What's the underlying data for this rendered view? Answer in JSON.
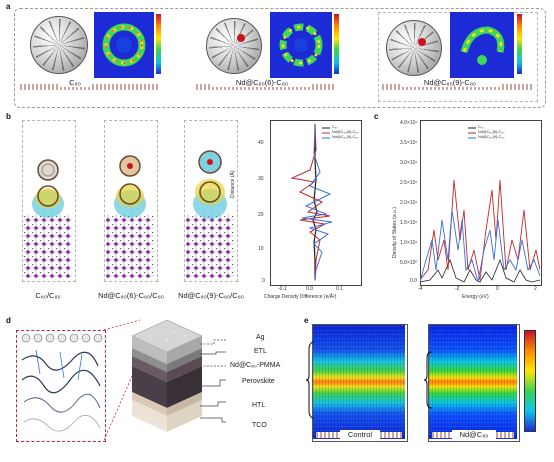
{
  "panels": {
    "a": "a",
    "b": "b",
    "c": "c",
    "d": "d",
    "e": "e"
  },
  "panel_a": {
    "labels": [
      "C₈₀",
      "Nd@C₈₀(6)-C₈₀",
      "Nd@C₈₀(9)-C₈₀"
    ]
  },
  "panel_b": {
    "structures": [
      "C₈₀/C₈₀",
      "Nd@C₈₀(6)-C₈₀/C₈₀",
      "Nd@C₈₀(9)-C₈₀/C₈₀"
    ],
    "plot": {
      "ylabel": "Distance (Å)",
      "xlabel": "Charge Density Difference (e/Å²)",
      "yticks": [
        "40",
        "30",
        "20",
        "10",
        "0"
      ],
      "xticks": [
        "-0.1",
        "0.0",
        "0.1"
      ],
      "legend": [
        "C₈₀",
        "Nd@C₈₀(6)-C₈₀",
        "Nd@C₈₀(9)-C₈₀"
      ]
    }
  },
  "panel_c": {
    "ylabel": "Density of States (a.u.)",
    "xlabel": "Energy (eV)",
    "yticks": [
      "4.0×10¹",
      "3.5×10¹",
      "3.0×10¹",
      "2.5×10¹",
      "2.0×10¹",
      "1.5×10¹",
      "1.0×10¹",
      "5.0×10⁰",
      "0.0"
    ],
    "xticks": [
      "-4",
      "-2",
      "0",
      "2"
    ],
    "legend": [
      "C₈₀",
      "Nd@C₈₀(6)-C₈₀",
      "Nd@C₈₀(9)-C₈₀"
    ],
    "colors": {
      "c80": "#222222",
      "six": "#c0282c",
      "nine": "#3a6fd8"
    }
  },
  "panel_d": {
    "layers": [
      "Ag",
      "ETL",
      "Nd@C₈₀-PMMA",
      "Perovskite",
      "HTL",
      "TCO"
    ]
  },
  "panel_e": {
    "labels": [
      "Control",
      "Nd@C₈₀"
    ]
  }
}
